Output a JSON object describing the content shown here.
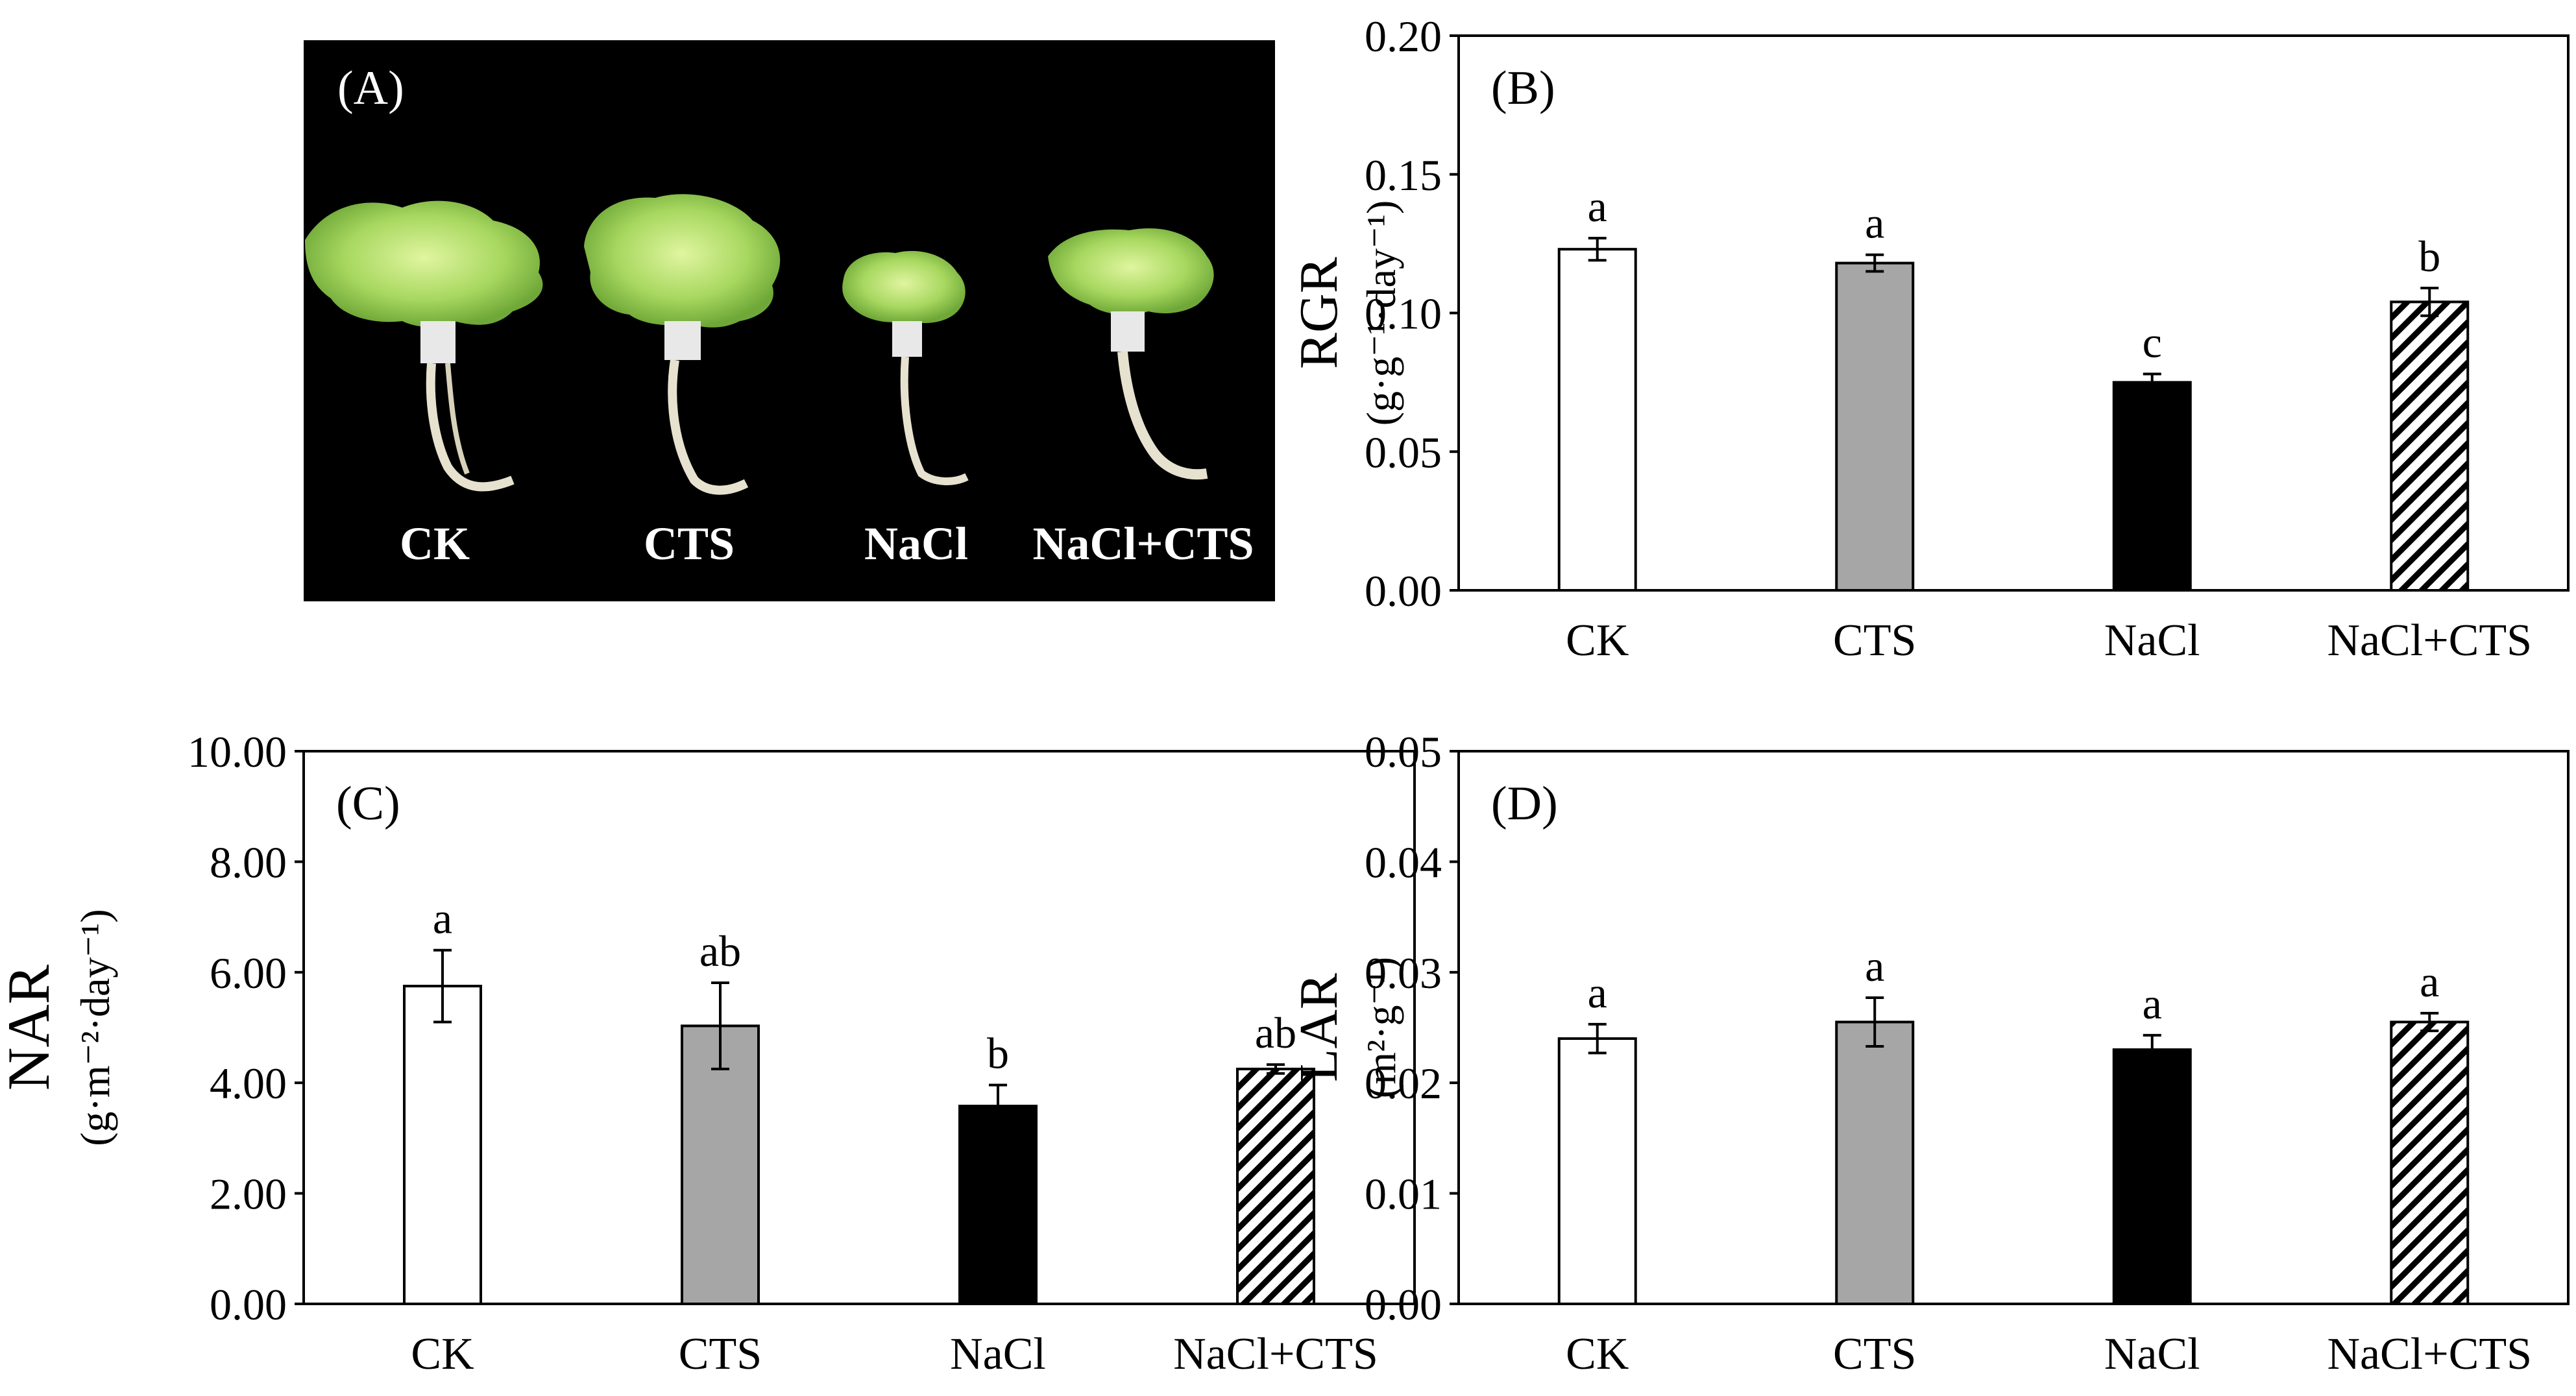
{
  "panel_a": {
    "label": "(A)",
    "plant_labels": [
      "CK",
      "CTS",
      "NaCl",
      "NaCl+CTS"
    ]
  },
  "colors": {
    "CK": "#ffffff",
    "CTS": "#a6a6a6",
    "NaCl": "#000000",
    "NaCl+CTS": "hatch",
    "photo_background": "#000000",
    "leaf": "#a8d860"
  },
  "chart_data": [
    {
      "panel": "(B)",
      "type": "bar",
      "ylabel_main": "RGR",
      "ylabel_unit": "(g·g⁻¹·day⁻¹)",
      "categories": [
        "CK",
        "CTS",
        "NaCl",
        "NaCl+CTS"
      ],
      "values": [
        0.123,
        0.118,
        0.075,
        0.104
      ],
      "errors": [
        0.004,
        0.003,
        0.003,
        0.005
      ],
      "letters": [
        "a",
        "a",
        "c",
        "b"
      ],
      "ylim": [
        0,
        0.2
      ],
      "yticks": [
        0,
        0.05,
        0.1,
        0.15,
        0.2
      ],
      "ytick_labels": [
        "0.00",
        "0.05",
        "0.10",
        "0.15",
        "0.20"
      ]
    },
    {
      "panel": "(C)",
      "type": "bar",
      "ylabel_main": "NAR",
      "ylabel_unit": "(g·m⁻²·day⁻¹)",
      "categories": [
        "CK",
        "CTS",
        "NaCl",
        "NaCl+CTS"
      ],
      "values": [
        5.75,
        5.03,
        3.58,
        4.25
      ],
      "errors": [
        0.65,
        0.78,
        0.38,
        0.08
      ],
      "letters": [
        "a",
        "ab",
        "b",
        "ab"
      ],
      "ylim": [
        0,
        10
      ],
      "yticks": [
        0,
        2,
        4,
        6,
        8,
        10
      ],
      "ytick_labels": [
        "0.00",
        "2.00",
        "4.00",
        "6.00",
        "8.00",
        "10.00"
      ]
    },
    {
      "panel": "(D)",
      "type": "bar",
      "ylabel_main": "LAR",
      "ylabel_unit": "(m²·g⁻¹)",
      "categories": [
        "CK",
        "CTS",
        "NaCl",
        "NaCl+CTS"
      ],
      "values": [
        0.024,
        0.0255,
        0.023,
        0.0255
      ],
      "errors": [
        0.0013,
        0.0022,
        0.0013,
        0.0008
      ],
      "letters": [
        "a",
        "a",
        "a",
        "a"
      ],
      "ylim": [
        0,
        0.05
      ],
      "yticks": [
        0,
        0.01,
        0.02,
        0.03,
        0.04,
        0.05
      ],
      "ytick_labels": [
        "0.00",
        "0.01",
        "0.02",
        "0.03",
        "0.04",
        "0.05"
      ]
    }
  ]
}
